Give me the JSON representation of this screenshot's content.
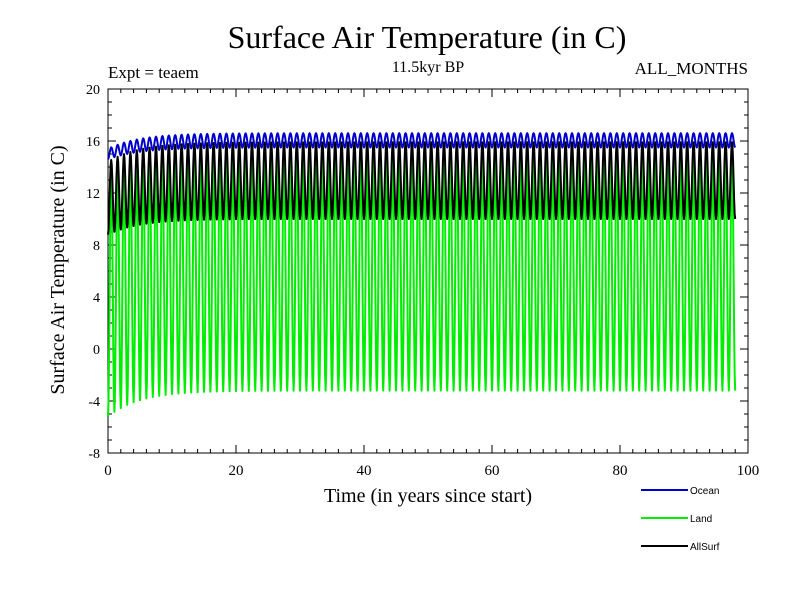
{
  "chart_data": {
    "type": "line",
    "title": "Surface Air Temperature (in C)",
    "subtitle": "11.5kyr BP",
    "experiment_label": "Expt = teaem",
    "months_label": "ALL_MONTHS",
    "xlabel": "Time (in years since start)",
    "ylabel": "Surface Air Temperature (in C)",
    "xlim": [
      0,
      100
    ],
    "ylim": [
      -8,
      20
    ],
    "x_ticks": [
      "0",
      "20",
      "40",
      "60",
      "80",
      "100"
    ],
    "y_ticks": [
      "-8",
      "-4",
      "0",
      "4",
      "8",
      "12",
      "16",
      "20"
    ],
    "grid": false,
    "legend_position": "bottom-right",
    "n_years": 98,
    "samples_per_year": 12,
    "series": [
      {
        "name": "Ocean",
        "color": "#0000cc",
        "min_start": 14.6,
        "max_start": 15.4,
        "min_steady": 15.5,
        "max_steady": 16.6
      },
      {
        "name": "Land",
        "color": "#00ee00",
        "min_start": -5.2,
        "max_start": 13.8,
        "min_steady": -3.2,
        "max_steady": 15.2
      },
      {
        "name": "AllSurf",
        "color": "#000000",
        "min_start": 8.8,
        "max_start": 14.4,
        "min_steady": 10.0,
        "max_steady": 15.9
      }
    ]
  }
}
